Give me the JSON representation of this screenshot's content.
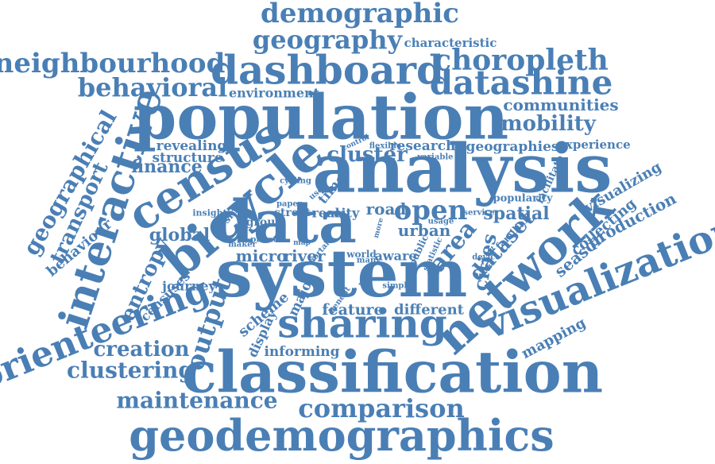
{
  "style": {
    "word_color": "#4a7fb5",
    "background": "#ffffff"
  },
  "words": [
    "population",
    "analysis",
    "system",
    "data",
    "bicycle",
    "census",
    "classification",
    "geodemographics",
    "network",
    "visualization",
    "sharing",
    "interactive",
    "orienteering",
    "dashboard",
    "datashine",
    "choropleth",
    "neighbourhood",
    "demographic",
    "geography",
    "behavioral",
    "comparison",
    "maintenance",
    "clustering",
    "creation",
    "output",
    "mobility",
    "communities",
    "environment",
    "characteristic",
    "geographical",
    "transport",
    "behaviour",
    "entropy",
    "censuses",
    "journey",
    "finance",
    "structure",
    "revealing",
    "cluster",
    "research",
    "geographies",
    "experience",
    "open",
    "spatial",
    "area",
    "cities",
    "dataset",
    "visualizing",
    "collecting",
    "production",
    "season",
    "mapping",
    "global",
    "micro",
    "river",
    "urban",
    "road",
    "real",
    "city",
    "street",
    "group",
    "time",
    "cycling",
    "similar",
    "insight",
    "scheme",
    "major",
    "display",
    "informing",
    "feature",
    "different",
    "world",
    "aware",
    "public",
    "statistic",
    "service",
    "familiar",
    "popularity",
    "facilitate",
    "variable",
    "flexible",
    "control",
    "paper",
    "user",
    "usage",
    "maker",
    "private",
    "map",
    "portal",
    "value",
    "many",
    "benefit",
    "simple",
    "device",
    "more"
  ]
}
